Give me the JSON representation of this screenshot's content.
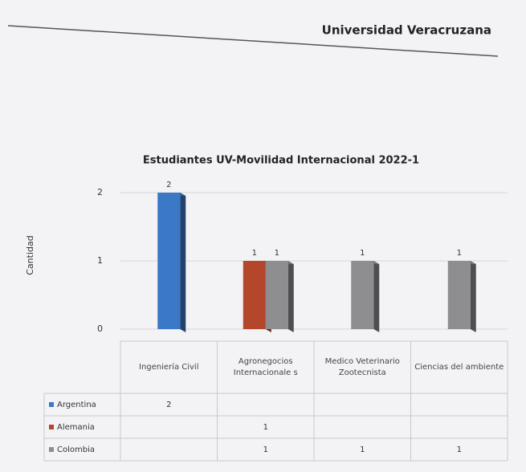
{
  "header": {
    "title": "Universidad Veracruzana"
  },
  "chart_data": {
    "type": "bar",
    "title": "Estudiantes UV-Movilidad Internacional 2022-1",
    "y_label": "Cantidad",
    "categories": [
      "Ingeniería Civil",
      "Agronegocios Internacionale s",
      "Medico Veterinario Zootecnista",
      "Ciencias del ambiente"
    ],
    "series": [
      {
        "name": "Argentina",
        "color": "#3b78c6",
        "values": [
          2,
          null,
          null,
          null
        ]
      },
      {
        "name": "Alemania",
        "color": "#b4462b",
        "values": [
          null,
          1,
          null,
          null
        ]
      },
      {
        "name": "Colombia",
        "color": "#8e8e90",
        "values": [
          null,
          1,
          1,
          1
        ]
      }
    ],
    "ylim": [
      0,
      2
    ],
    "yticks": [
      0,
      1,
      2
    ],
    "grid": true,
    "data_table": true
  }
}
